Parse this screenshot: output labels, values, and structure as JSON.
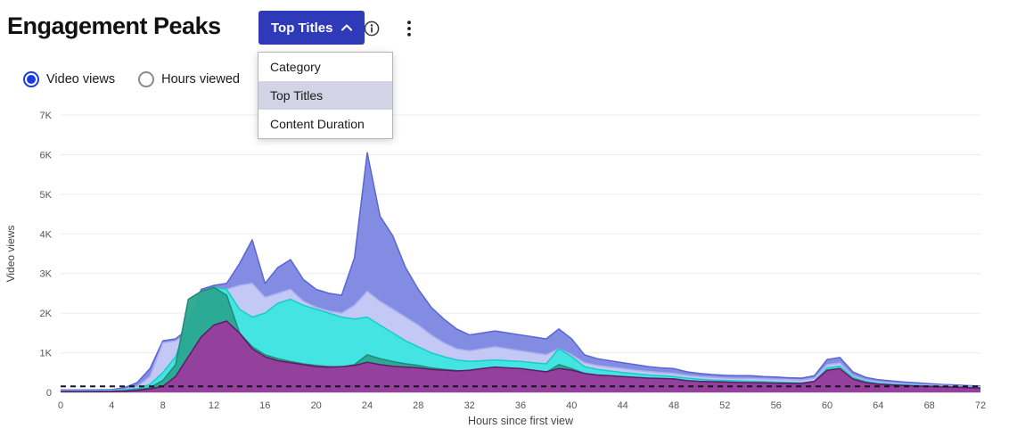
{
  "header": {
    "title": "Engagement Peaks",
    "dropdown_button": {
      "label": "Top Titles",
      "state": "open"
    },
    "icons": {
      "chevron": "chevron-up",
      "info": "circle-i",
      "kebab": "vertical-dots"
    }
  },
  "dropdown_menu": {
    "items": [
      {
        "label": "Category",
        "selected": false
      },
      {
        "label": "Top Titles",
        "selected": true
      },
      {
        "label": "Content Duration",
        "selected": false
      }
    ]
  },
  "controls": {
    "radios": [
      {
        "label": "Video views",
        "selected": true
      },
      {
        "label": "Hours viewed",
        "selected": false
      }
    ]
  },
  "colors": {
    "button_bg": "#2e3ab8",
    "radio_selected": "#1b3be0",
    "dropdown_selected_bg": "#d2d4e6",
    "baseline_line": "#16121e"
  },
  "chart_data": {
    "type": "area",
    "stacked": false,
    "title": "",
    "xlabel": "Hours since first view",
    "ylabel": "Video views",
    "xlim": [
      0,
      72
    ],
    "ylim": [
      0,
      7000
    ],
    "x_ticks": [
      0,
      4,
      8,
      12,
      16,
      20,
      24,
      28,
      32,
      36,
      40,
      44,
      48,
      52,
      56,
      60,
      64,
      68,
      72
    ],
    "y_tick_values": [
      0,
      1000,
      2000,
      3000,
      4000,
      5000,
      6000,
      7000
    ],
    "y_tick_labels": [
      "0",
      "1K",
      "2K",
      "3K",
      "4K",
      "5K",
      "6K",
      "7K"
    ],
    "grid": "horizontal",
    "legend": "none",
    "x_start": 0,
    "x_step": 1,
    "series": [
      {
        "name": "indigo-area",
        "fill": "#7b86e1",
        "stroke": "#5a66d4",
        "values": [
          60,
          60,
          60,
          65,
          70,
          120,
          250,
          600,
          1300,
          1350,
          1600,
          2600,
          2700,
          2750,
          3250,
          3850,
          2750,
          3150,
          3350,
          2850,
          2600,
          2500,
          2450,
          3400,
          6050,
          4450,
          3950,
          3150,
          2600,
          2150,
          1850,
          1600,
          1450,
          1500,
          1550,
          1500,
          1450,
          1400,
          1350,
          1600,
          1350,
          950,
          850,
          800,
          750,
          700,
          650,
          620,
          600,
          520,
          480,
          450,
          430,
          420,
          420,
          400,
          390,
          370,
          360,
          420,
          830,
          880,
          520,
          380,
          320,
          290,
          260,
          240,
          220,
          200,
          190,
          170,
          160
        ]
      },
      {
        "name": "lavender-area",
        "fill": "#c7cbf4",
        "stroke": "#aab0ec",
        "values": [
          40,
          40,
          40,
          45,
          50,
          80,
          150,
          400,
          1250,
          1300,
          1500,
          2550,
          2600,
          2600,
          2700,
          2750,
          2400,
          2500,
          2600,
          2300,
          2150,
          2050,
          2000,
          2200,
          2550,
          2300,
          2100,
          1900,
          1700,
          1450,
          1250,
          1100,
          1050,
          1100,
          1150,
          1100,
          1050,
          1000,
          950,
          1100,
          950,
          750,
          680,
          640,
          600,
          560,
          530,
          500,
          480,
          430,
          400,
          380,
          360,
          350,
          350,
          340,
          330,
          320,
          310,
          360,
          700,
          740,
          430,
          320,
          270,
          240,
          220,
          200,
          190,
          175,
          165,
          150,
          140
        ]
      },
      {
        "name": "cyan-area",
        "fill": "#3de6e0",
        "stroke": "#17cdc6",
        "values": [
          30,
          30,
          30,
          35,
          40,
          60,
          100,
          200,
          500,
          900,
          1800,
          2400,
          2650,
          2600,
          2100,
          1900,
          2000,
          2250,
          2350,
          2200,
          2100,
          2000,
          1900,
          1850,
          1900,
          1700,
          1500,
          1300,
          1150,
          1000,
          900,
          820,
          780,
          800,
          820,
          800,
          780,
          750,
          720,
          1100,
          900,
          650,
          580,
          540,
          500,
          470,
          440,
          420,
          400,
          360,
          330,
          310,
          300,
          290,
          280,
          270,
          260,
          250,
          240,
          280,
          620,
          660,
          380,
          280,
          230,
          210,
          190,
          175,
          160,
          150,
          140,
          130,
          120
        ]
      },
      {
        "name": "teal-area",
        "fill": "#2aa690",
        "stroke": "#1d8a77",
        "values": [
          20,
          20,
          20,
          25,
          30,
          45,
          70,
          120,
          300,
          700,
          2350,
          2550,
          2650,
          2450,
          1500,
          1150,
          950,
          850,
          780,
          720,
          680,
          650,
          640,
          700,
          950,
          850,
          780,
          720,
          680,
          620,
          580,
          550,
          540,
          560,
          580,
          560,
          540,
          520,
          500,
          700,
          600,
          480,
          430,
          400,
          380,
          360,
          340,
          330,
          320,
          290,
          270,
          260,
          250,
          240,
          235,
          230,
          225,
          220,
          215,
          250,
          520,
          550,
          330,
          240,
          200,
          185,
          170,
          160,
          150,
          140,
          130,
          120,
          110
        ]
      },
      {
        "name": "magenta-area",
        "fill": "#9a3a9d",
        "stroke": "#611a67",
        "values": [
          15,
          15,
          15,
          18,
          20,
          30,
          50,
          90,
          150,
          400,
          900,
          1400,
          1700,
          1800,
          1500,
          1100,
          900,
          800,
          750,
          700,
          650,
          640,
          650,
          680,
          760,
          700,
          660,
          640,
          620,
          580,
          560,
          540,
          560,
          600,
          640,
          620,
          600,
          560,
          520,
          600,
          560,
          480,
          440,
          420,
          400,
          380,
          360,
          350,
          340,
          300,
          280,
          270,
          260,
          250,
          245,
          240,
          235,
          230,
          225,
          280,
          560,
          600,
          340,
          250,
          210,
          190,
          175,
          160,
          150,
          140,
          130,
          120,
          110
        ]
      }
    ],
    "baseline": {
      "name": "benchmark-dashed-line",
      "value": 150,
      "color": "#16121e",
      "dash": "6 5"
    }
  }
}
